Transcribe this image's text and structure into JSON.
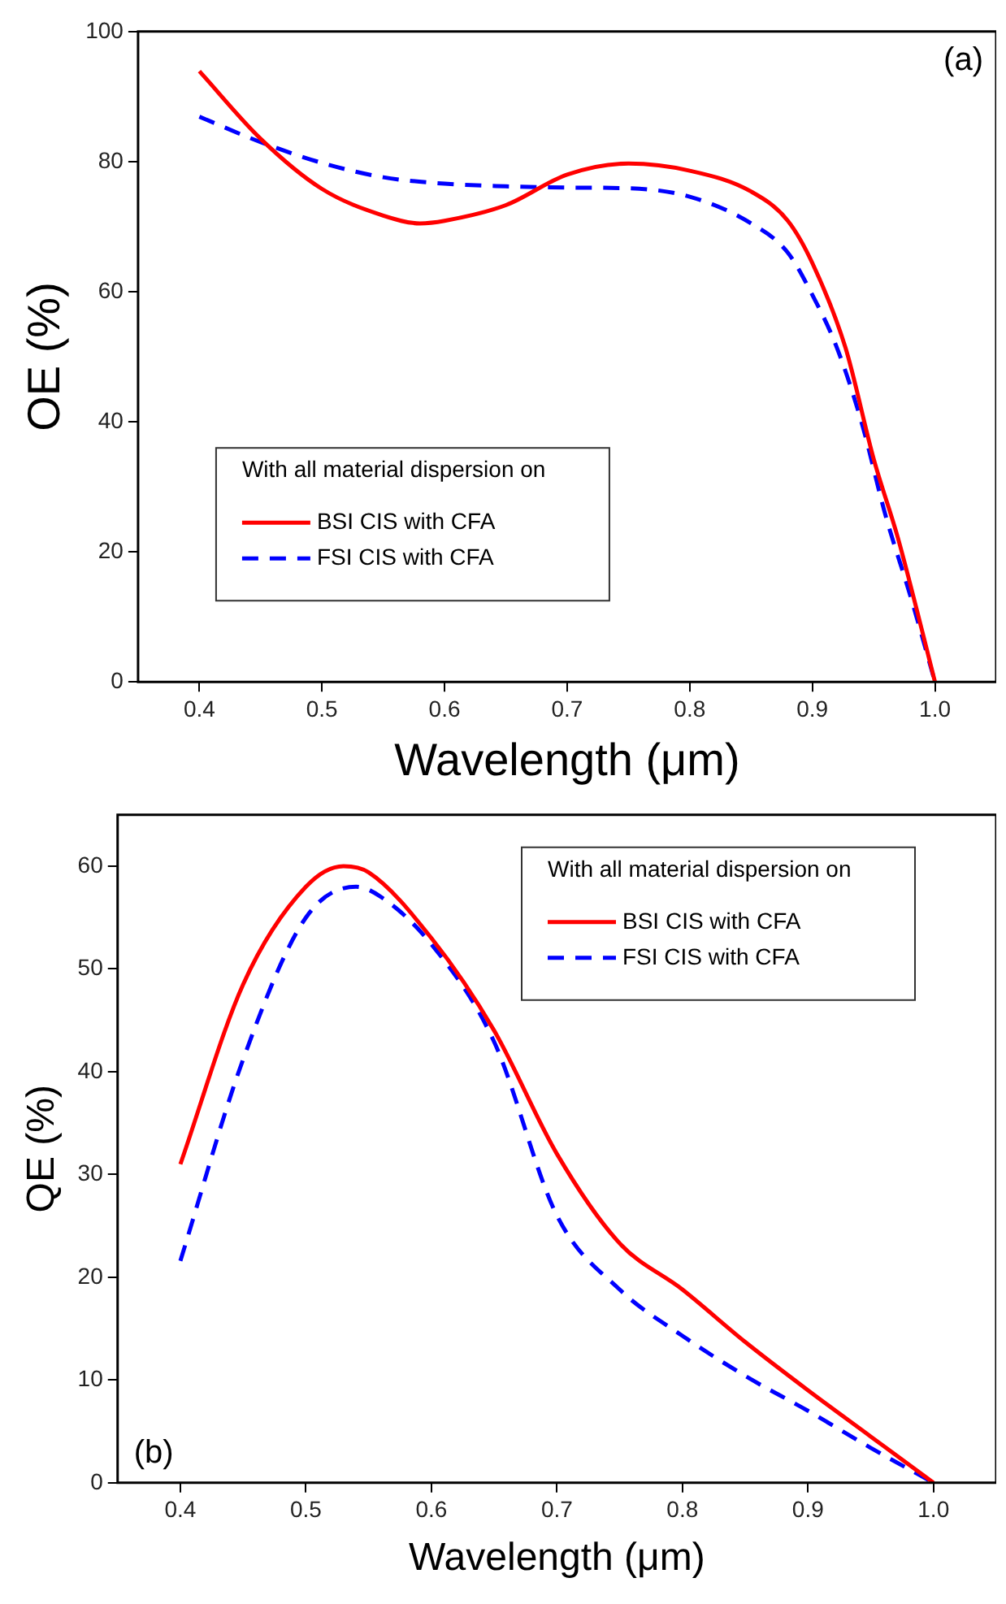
{
  "chart_data": [
    {
      "type": "line",
      "xlabel": "Wavelength (μm)",
      "ylabel": "OE (%)",
      "legend_title": "With all material dispersion on",
      "legend": "bottom left",
      "marker": "none",
      "grid": false,
      "annotations": [
        "(a)"
      ],
      "xlim": [
        0.35,
        1.05
      ],
      "xticks": [
        {
          "value": 0.4,
          "label": "0.4"
        },
        {
          "value": 0.5,
          "label": "0.5"
        },
        {
          "value": 0.6,
          "label": "0.6"
        },
        {
          "value": 0.7,
          "label": "0.7"
        },
        {
          "value": 0.8,
          "label": "0.8"
        },
        {
          "value": 0.9,
          "label": "0.9"
        },
        {
          "value": 1.0,
          "label": "1.0"
        }
      ],
      "ylim": [
        0,
        100
      ],
      "yticks": [
        0,
        20,
        40,
        60,
        80,
        100
      ],
      "series": [
        {
          "name": "BSI CIS with CFA",
          "color": "#ff0000",
          "line_style": "solid",
          "x": [
            0.4,
            0.45,
            0.5,
            0.55,
            0.58,
            0.6,
            0.65,
            0.7,
            0.75,
            0.8,
            0.85,
            0.88,
            0.9,
            0.927,
            0.95,
            0.97,
            0.99,
            1.0
          ],
          "values": [
            93.9,
            83.5,
            75.8,
            71.7,
            70.5,
            70.9,
            73.3,
            78,
            79.7,
            78.6,
            75.4,
            70.9,
            64.4,
            51.4,
            34.3,
            22,
            7.5,
            0
          ]
        },
        {
          "name": "FSI CIS with CFA",
          "color": "#0000ff",
          "line_style": "dashed",
          "x": [
            0.4,
            0.45,
            0.5,
            0.55,
            0.6,
            0.65,
            0.7,
            0.75,
            0.8,
            0.85,
            0.88,
            0.9,
            0.92,
            0.94,
            0.96,
            0.98,
            1.0
          ],
          "values": [
            86.9,
            83,
            79.8,
            77.6,
            76.6,
            76.2,
            76,
            75.9,
            74.6,
            70.5,
            66,
            59.5,
            51.4,
            40,
            25.4,
            13.2,
            0
          ]
        }
      ]
    },
    {
      "type": "line",
      "xlabel": "Wavelength (μm)",
      "ylabel": "QE (%)",
      "legend_title": "With all material dispersion on",
      "legend": "top right",
      "marker": "none",
      "grid": false,
      "annotations": [
        "(b)"
      ],
      "xlim": [
        0.35,
        1.05
      ],
      "xticks": [
        {
          "value": 0.4,
          "label": "0.4"
        },
        {
          "value": 0.5,
          "label": "0.5"
        },
        {
          "value": 0.6,
          "label": "0.6"
        },
        {
          "value": 0.7,
          "label": "0.7"
        },
        {
          "value": 0.8,
          "label": "0.8"
        },
        {
          "value": 0.9,
          "label": "0.9"
        },
        {
          "value": 1.0,
          "label": "1.0"
        }
      ],
      "ylim": [
        0,
        65
      ],
      "yticks": [
        0,
        10,
        20,
        30,
        40,
        50,
        60
      ],
      "series": [
        {
          "name": "BSI CIS with CFA",
          "color": "#ff0000",
          "line_style": "solid",
          "x": [
            0.4,
            0.45,
            0.5,
            0.53,
            0.55,
            0.6,
            0.65,
            0.7,
            0.75,
            0.8,
            0.85,
            0.9,
            0.95,
            1.0
          ],
          "values": [
            31,
            48.5,
            58,
            60,
            59.4,
            53,
            44,
            32,
            23.3,
            18.8,
            13.7,
            9,
            4.5,
            0
          ]
        },
        {
          "name": "FSI CIS with CFA",
          "color": "#0000ff",
          "line_style": "dashed",
          "x": [
            0.4,
            0.45,
            0.5,
            0.54,
            0.56,
            0.6,
            0.65,
            0.7,
            0.75,
            0.8,
            0.85,
            0.9,
            0.95,
            1.0
          ],
          "values": [
            21.6,
            41.2,
            55,
            58,
            57,
            52.4,
            42.9,
            26,
            18.8,
            14.3,
            10.4,
            7,
            3.4,
            0
          ]
        }
      ]
    }
  ]
}
